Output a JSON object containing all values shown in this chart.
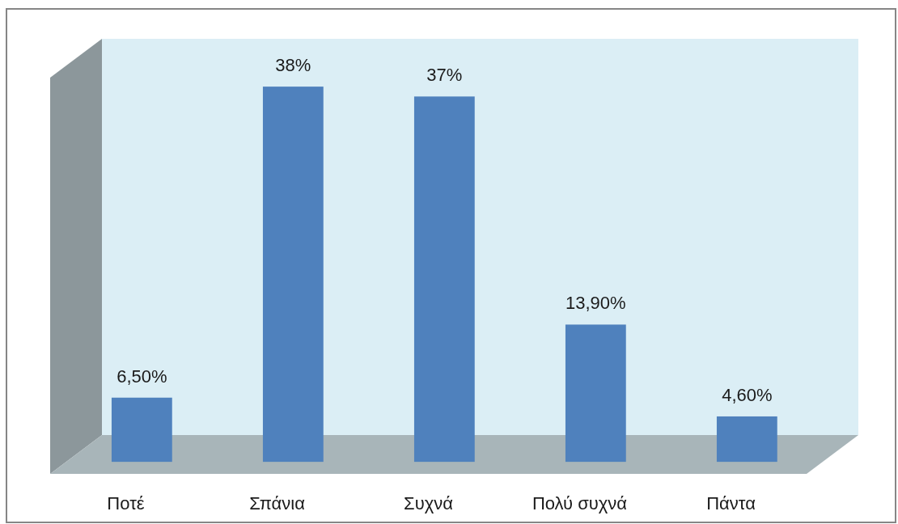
{
  "chart_data": {
    "type": "bar",
    "categories": [
      "Ποτέ",
      "Σπάνια",
      "Συχνά",
      "Πολύ συχνά",
      "Πάντα"
    ],
    "values": [
      6.5,
      38,
      37,
      13.9,
      4.6
    ],
    "value_labels": [
      "6,50%",
      "38%",
      "37%",
      "13,90%",
      "4,60%"
    ],
    "color": "#4f81bd",
    "tick_labels": "x"
  }
}
